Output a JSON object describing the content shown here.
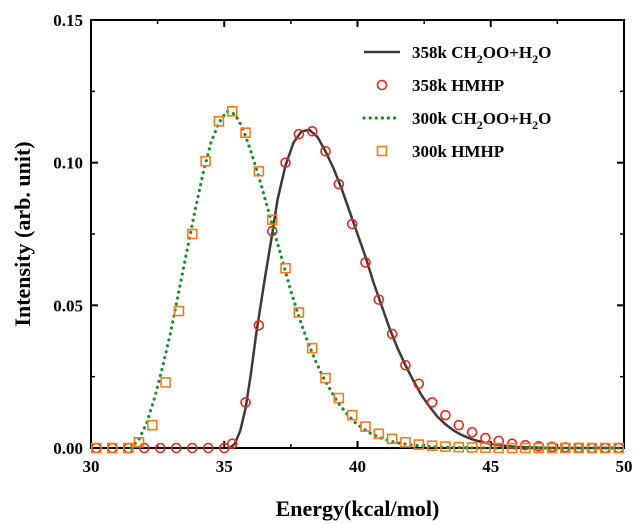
{
  "chart_data": {
    "type": "line",
    "xlabel": "Energy(kcal/mol)",
    "ylabel": "Intensity (arb. unit)",
    "xlim": [
      30,
      50
    ],
    "ylim": [
      0,
      0.15
    ],
    "xticks": [
      30,
      35,
      40,
      45,
      50
    ],
    "xtick_labels": [
      "30",
      "35",
      "40",
      "45",
      "50"
    ],
    "yticks": [
      0,
      0.05,
      0.1,
      0.15
    ],
    "ytick_labels": [
      "0.00",
      "0.05",
      "0.10",
      "0.15"
    ],
    "grid": false,
    "legend_position": "top-right",
    "series": [
      {
        "name": "358k CH2OO+H2O",
        "name_parts": [
          "358k CH",
          "2",
          "OO+H",
          "2",
          "O"
        ],
        "style": "solid-line",
        "color": "#3a3a3a",
        "x": [
          35.2,
          35.4,
          35.6,
          35.8,
          36.0,
          36.2,
          36.5,
          36.8,
          37.0,
          37.3,
          37.6,
          37.9,
          38.2,
          38.5,
          38.8,
          39.1,
          39.4,
          39.7,
          40.0,
          40.3,
          40.6,
          40.9,
          41.2,
          41.5,
          41.8,
          42.1,
          42.4,
          42.7,
          43.0,
          43.3,
          43.6,
          43.9,
          44.2,
          44.5,
          44.8,
          45.1,
          45.4,
          45.7,
          46.0,
          46.5,
          47.0,
          47.5,
          48.0,
          48.5,
          49.0,
          49.5
        ],
        "values": [
          0.0,
          0.0015,
          0.006,
          0.014,
          0.026,
          0.04,
          0.058,
          0.075,
          0.087,
          0.099,
          0.107,
          0.111,
          0.1115,
          0.109,
          0.104,
          0.098,
          0.091,
          0.083,
          0.075,
          0.067,
          0.058,
          0.05,
          0.042,
          0.035,
          0.029,
          0.0235,
          0.0185,
          0.0145,
          0.011,
          0.0083,
          0.0062,
          0.0046,
          0.0034,
          0.0025,
          0.0018,
          0.0013,
          0.0009,
          0.0006,
          0.0004,
          0.0002,
          0.0001,
          0.0,
          0.0,
          0.0,
          0.0,
          0.0
        ]
      },
      {
        "name": "358k HMHP",
        "name_parts": [
          "358k HMHP"
        ],
        "style": "circle-marker",
        "color": "#e8281e",
        "x": [
          30.2,
          30.8,
          31.4,
          32.0,
          32.6,
          33.2,
          33.8,
          34.4,
          35.0,
          35.3,
          35.8,
          36.3,
          36.8,
          37.3,
          37.8,
          38.3,
          38.8,
          39.3,
          39.8,
          40.3,
          40.8,
          41.3,
          41.8,
          42.3,
          42.8,
          43.3,
          43.8,
          44.3,
          44.8,
          45.3,
          45.8,
          46.3,
          46.8,
          47.3,
          47.8,
          48.3,
          48.8,
          49.3,
          49.8
        ],
        "values": [
          0.0,
          0.0,
          0.0,
          0.0,
          0.0,
          0.0,
          0.0,
          0.0,
          0.0,
          0.0015,
          0.016,
          0.043,
          0.076,
          0.1,
          0.11,
          0.111,
          0.104,
          0.0925,
          0.0785,
          0.065,
          0.052,
          0.04,
          0.029,
          0.0225,
          0.016,
          0.0115,
          0.008,
          0.0055,
          0.0035,
          0.0025,
          0.0015,
          0.001,
          0.0006,
          0.0004,
          0.0002,
          0.0001,
          0.0,
          0.0,
          0.0
        ]
      },
      {
        "name": "300k CH2OO+H2O",
        "name_parts": [
          "300k CH",
          "2",
          "OO+H",
          "2",
          "O"
        ],
        "style": "dotted-line",
        "color": "#1a8c2a",
        "x": [
          31.5,
          31.8,
          32.1,
          32.4,
          32.7,
          33.0,
          33.3,
          33.6,
          33.9,
          34.2,
          34.5,
          34.8,
          35.1,
          35.4,
          35.7,
          36.0,
          36.3,
          36.6,
          36.9,
          37.2,
          37.5,
          37.8,
          38.1,
          38.4,
          38.7,
          39.0,
          39.3,
          39.6,
          39.9,
          40.2,
          40.5,
          40.8,
          41.1,
          41.4,
          41.7,
          42.0,
          42.5,
          43.0,
          43.5,
          44.0,
          44.5,
          45.0,
          46.0,
          47.0,
          48.0,
          49.0,
          50.0
        ],
        "values": [
          0.0,
          0.003,
          0.009,
          0.018,
          0.029,
          0.041,
          0.055,
          0.069,
          0.083,
          0.096,
          0.107,
          0.114,
          0.118,
          0.117,
          0.112,
          0.104,
          0.095,
          0.085,
          0.075,
          0.065,
          0.055,
          0.046,
          0.038,
          0.031,
          0.025,
          0.02,
          0.0155,
          0.012,
          0.009,
          0.0068,
          0.0051,
          0.0038,
          0.0028,
          0.002,
          0.0015,
          0.0011,
          0.0006,
          0.0003,
          0.0002,
          0.0001,
          0.0,
          0.0,
          0.0,
          0.0,
          0.0,
          0.0,
          0.0
        ]
      },
      {
        "name": "300k HMHP",
        "name_parts": [
          "300k HMHP"
        ],
        "style": "square-marker",
        "color": "#f07c1e",
        "x": [
          30.2,
          30.8,
          31.4,
          31.8,
          32.3,
          32.8,
          33.3,
          33.8,
          34.3,
          34.8,
          35.3,
          35.8,
          36.3,
          36.8,
          37.3,
          37.8,
          38.3,
          38.8,
          39.3,
          39.8,
          40.3,
          40.8,
          41.3,
          41.8,
          42.3,
          42.8,
          43.3,
          43.8,
          44.3,
          44.8,
          45.3,
          45.8,
          46.3,
          46.8,
          47.3,
          47.8,
          48.3,
          48.8,
          49.3,
          49.8
        ],
        "values": [
          0.0,
          0.0,
          0.0,
          0.002,
          0.008,
          0.023,
          0.048,
          0.075,
          0.1005,
          0.1145,
          0.118,
          0.1105,
          0.097,
          0.08,
          0.063,
          0.0475,
          0.035,
          0.0245,
          0.0175,
          0.0115,
          0.0075,
          0.005,
          0.0032,
          0.002,
          0.0012,
          0.0008,
          0.0005,
          0.0003,
          0.0002,
          0.0001,
          0.0,
          0.0,
          0.0,
          0.0,
          0.0,
          0.0,
          0.0,
          0.0,
          0.0,
          0.0
        ]
      }
    ]
  }
}
